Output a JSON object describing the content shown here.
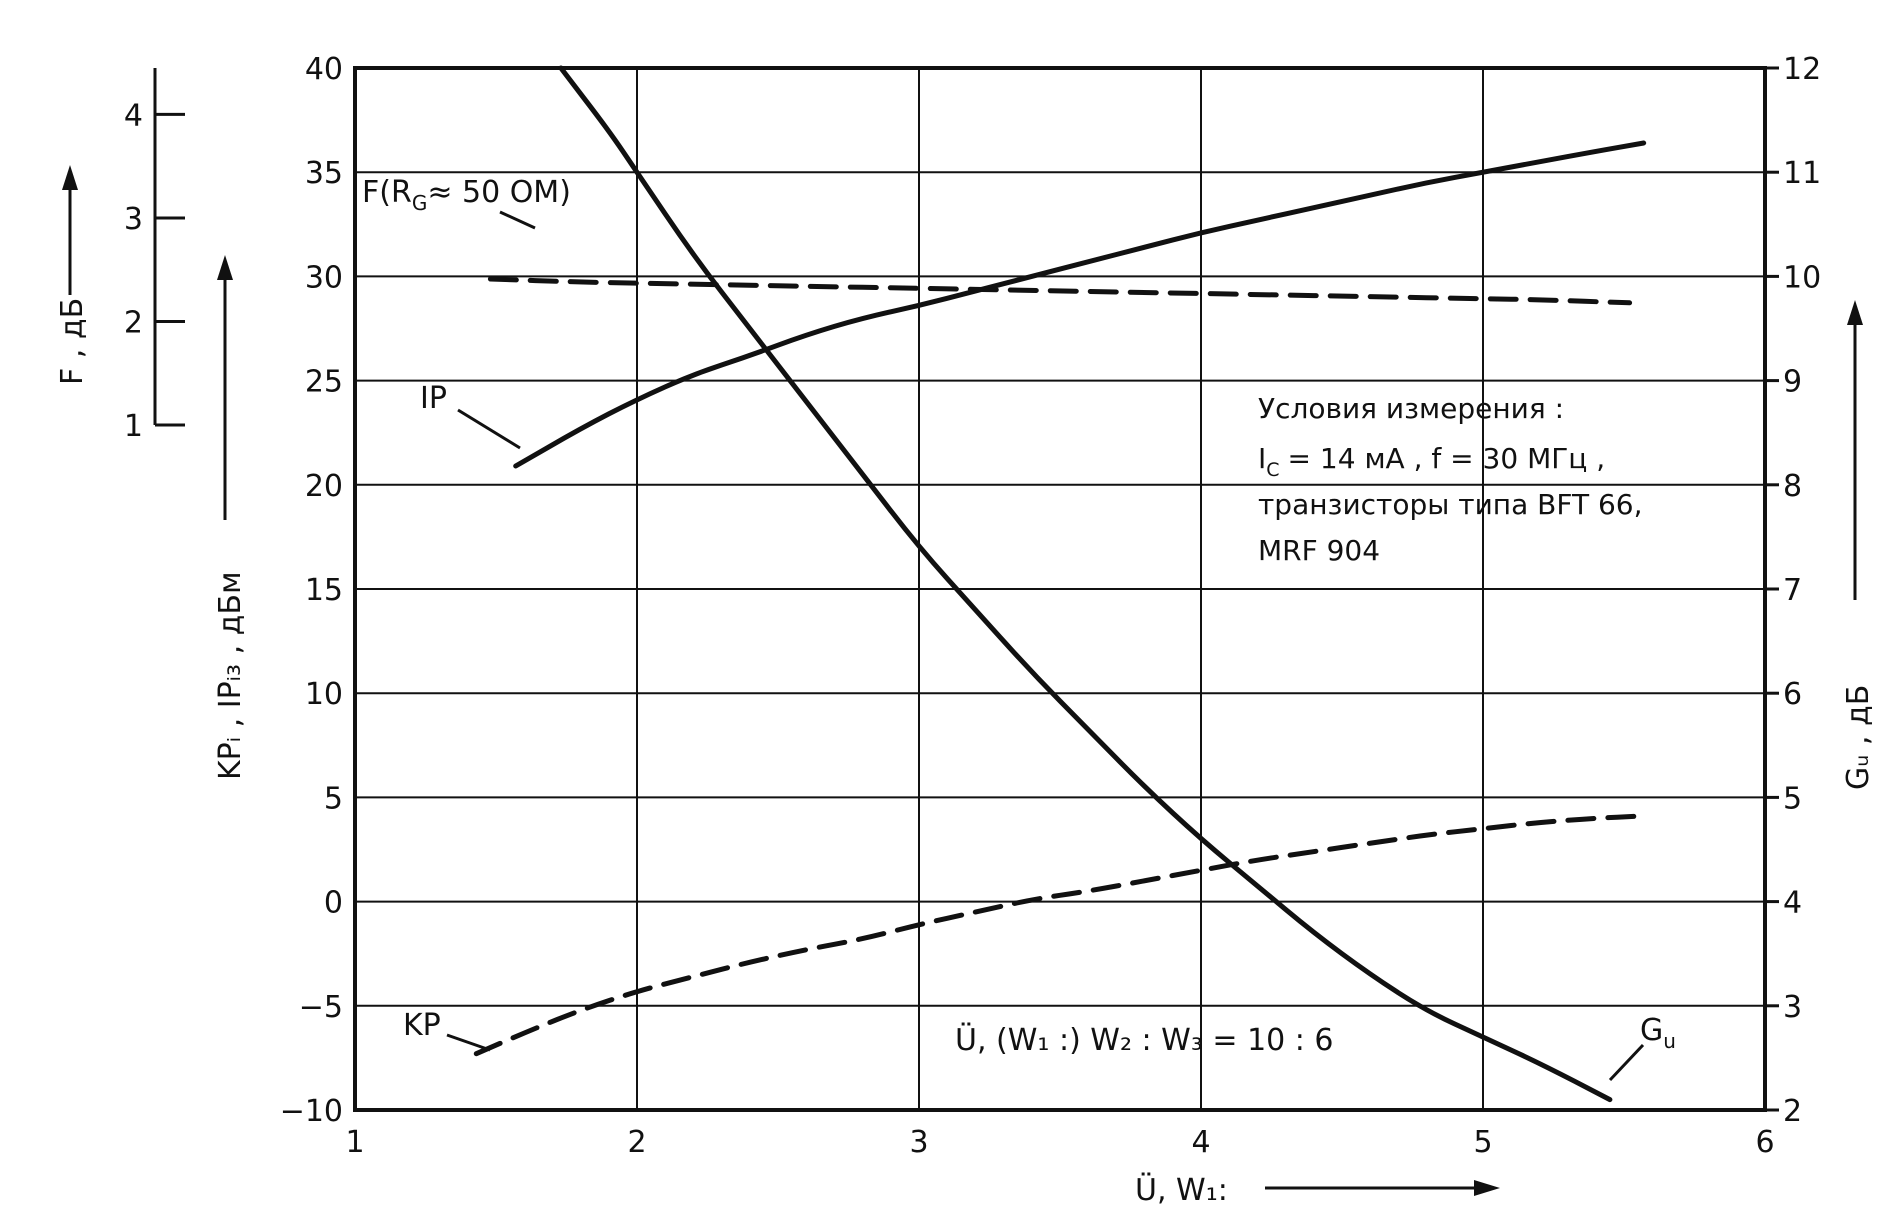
{
  "chart_data": {
    "type": "line",
    "x_label": "Ü, W₁:",
    "x_range": [
      1,
      6
    ],
    "x_ticks": [
      "1",
      "2",
      "3",
      "4",
      "5",
      "6"
    ],
    "left_axis_label": "KPᵢ , IPᵢ₃ , дБм",
    "left_range": [
      -10,
      40
    ],
    "left_ticks": [
      "−10",
      "−5",
      "0",
      "5",
      "10",
      "15",
      "20",
      "25",
      "30",
      "35",
      "40"
    ],
    "f_axis_label": "F , дБ",
    "f_range": [
      1,
      4
    ],
    "f_ticks": [
      "1",
      "2",
      "3",
      "4"
    ],
    "right_axis_label": "Gᵤ , дБ",
    "right_range": [
      2,
      12
    ],
    "right_ticks": [
      "2",
      "3",
      "4",
      "5",
      "6",
      "7",
      "8",
      "9",
      "10",
      "11",
      "12"
    ],
    "grid": true,
    "series": [
      {
        "name": "IP",
        "axis": "left",
        "style": "solid",
        "points": [
          [
            1.57,
            20.9
          ],
          [
            1.8,
            22.7
          ],
          [
            2.0,
            24.1
          ],
          [
            2.2,
            25.3
          ],
          [
            2.4,
            26.2
          ],
          [
            2.6,
            27.2
          ],
          [
            2.8,
            28.0
          ],
          [
            3.0,
            28.6
          ],
          [
            3.2,
            29.3
          ],
          [
            3.4,
            30.0
          ],
          [
            3.6,
            30.7
          ],
          [
            3.8,
            31.4
          ],
          [
            4.0,
            32.1
          ],
          [
            4.2,
            32.7
          ],
          [
            4.4,
            33.3
          ],
          [
            4.6,
            33.9
          ],
          [
            4.8,
            34.5
          ],
          [
            5.0,
            35.0
          ],
          [
            5.2,
            35.5
          ],
          [
            5.4,
            36.0
          ],
          [
            5.57,
            36.4
          ]
        ]
      },
      {
        "name": "Gu",
        "axis": "right",
        "style": "solid",
        "points": [
          [
            1.73,
            12.0
          ],
          [
            1.9,
            11.4
          ],
          [
            2.0,
            11.0
          ],
          [
            2.2,
            10.2
          ],
          [
            2.4,
            9.5
          ],
          [
            2.6,
            8.8
          ],
          [
            2.8,
            8.1
          ],
          [
            3.0,
            7.4
          ],
          [
            3.2,
            6.8
          ],
          [
            3.4,
            6.2
          ],
          [
            3.6,
            5.65
          ],
          [
            3.8,
            5.1
          ],
          [
            4.0,
            4.6
          ],
          [
            4.2,
            4.15
          ],
          [
            4.4,
            3.7
          ],
          [
            4.6,
            3.3
          ],
          [
            4.8,
            2.95
          ],
          [
            5.0,
            2.7
          ],
          [
            5.2,
            2.45
          ],
          [
            5.45,
            2.1
          ]
        ]
      },
      {
        "name": "KP",
        "axis": "left",
        "style": "dashed",
        "points": [
          [
            1.43,
            -7.3
          ],
          [
            1.6,
            -6.3
          ],
          [
            1.8,
            -5.2
          ],
          [
            2.0,
            -4.3
          ],
          [
            2.2,
            -3.6
          ],
          [
            2.4,
            -2.9
          ],
          [
            2.6,
            -2.3
          ],
          [
            2.8,
            -1.8
          ],
          [
            3.0,
            -1.1
          ],
          [
            3.2,
            -0.5
          ],
          [
            3.4,
            0.1
          ],
          [
            3.6,
            0.5
          ],
          [
            3.8,
            1.0
          ],
          [
            4.0,
            1.5
          ],
          [
            4.2,
            2.0
          ],
          [
            4.4,
            2.4
          ],
          [
            4.6,
            2.8
          ],
          [
            4.8,
            3.2
          ],
          [
            5.0,
            3.5
          ],
          [
            5.2,
            3.8
          ],
          [
            5.4,
            4.0
          ],
          [
            5.55,
            4.1
          ]
        ]
      },
      {
        "name": "F (R_G ≈ 50 ОМ)",
        "axis": "F",
        "style": "dashed",
        "points": [
          [
            1.48,
            2.41
          ],
          [
            1.8,
            2.38
          ],
          [
            2.2,
            2.36
          ],
          [
            2.6,
            2.34
          ],
          [
            3.0,
            2.32
          ],
          [
            3.4,
            2.3
          ],
          [
            3.8,
            2.28
          ],
          [
            4.2,
            2.26
          ],
          [
            4.6,
            2.24
          ],
          [
            5.0,
            2.22
          ],
          [
            5.2,
            2.21
          ],
          [
            5.52,
            2.18
          ]
        ]
      }
    ],
    "labels": {
      "IP": "IP",
      "KP": "KP",
      "Gu_main": "G",
      "Gu_sub": "u",
      "F_prefix": "F(R",
      "F_sub": "G",
      "F_suffix": "≈ 50 ОМ)"
    },
    "conditions": {
      "title": "Условия измерения :",
      "line1": "I",
      "line1_sub": "C",
      "line1_rest": "= 14 мА ,  f = 30 МГц ,",
      "line2": "транзисторы типа  BFT 66,",
      "line3": "MRF 904"
    },
    "ratio_note": "Ü, (W₁ :) W₂ : W₃ = 10 : 6"
  }
}
